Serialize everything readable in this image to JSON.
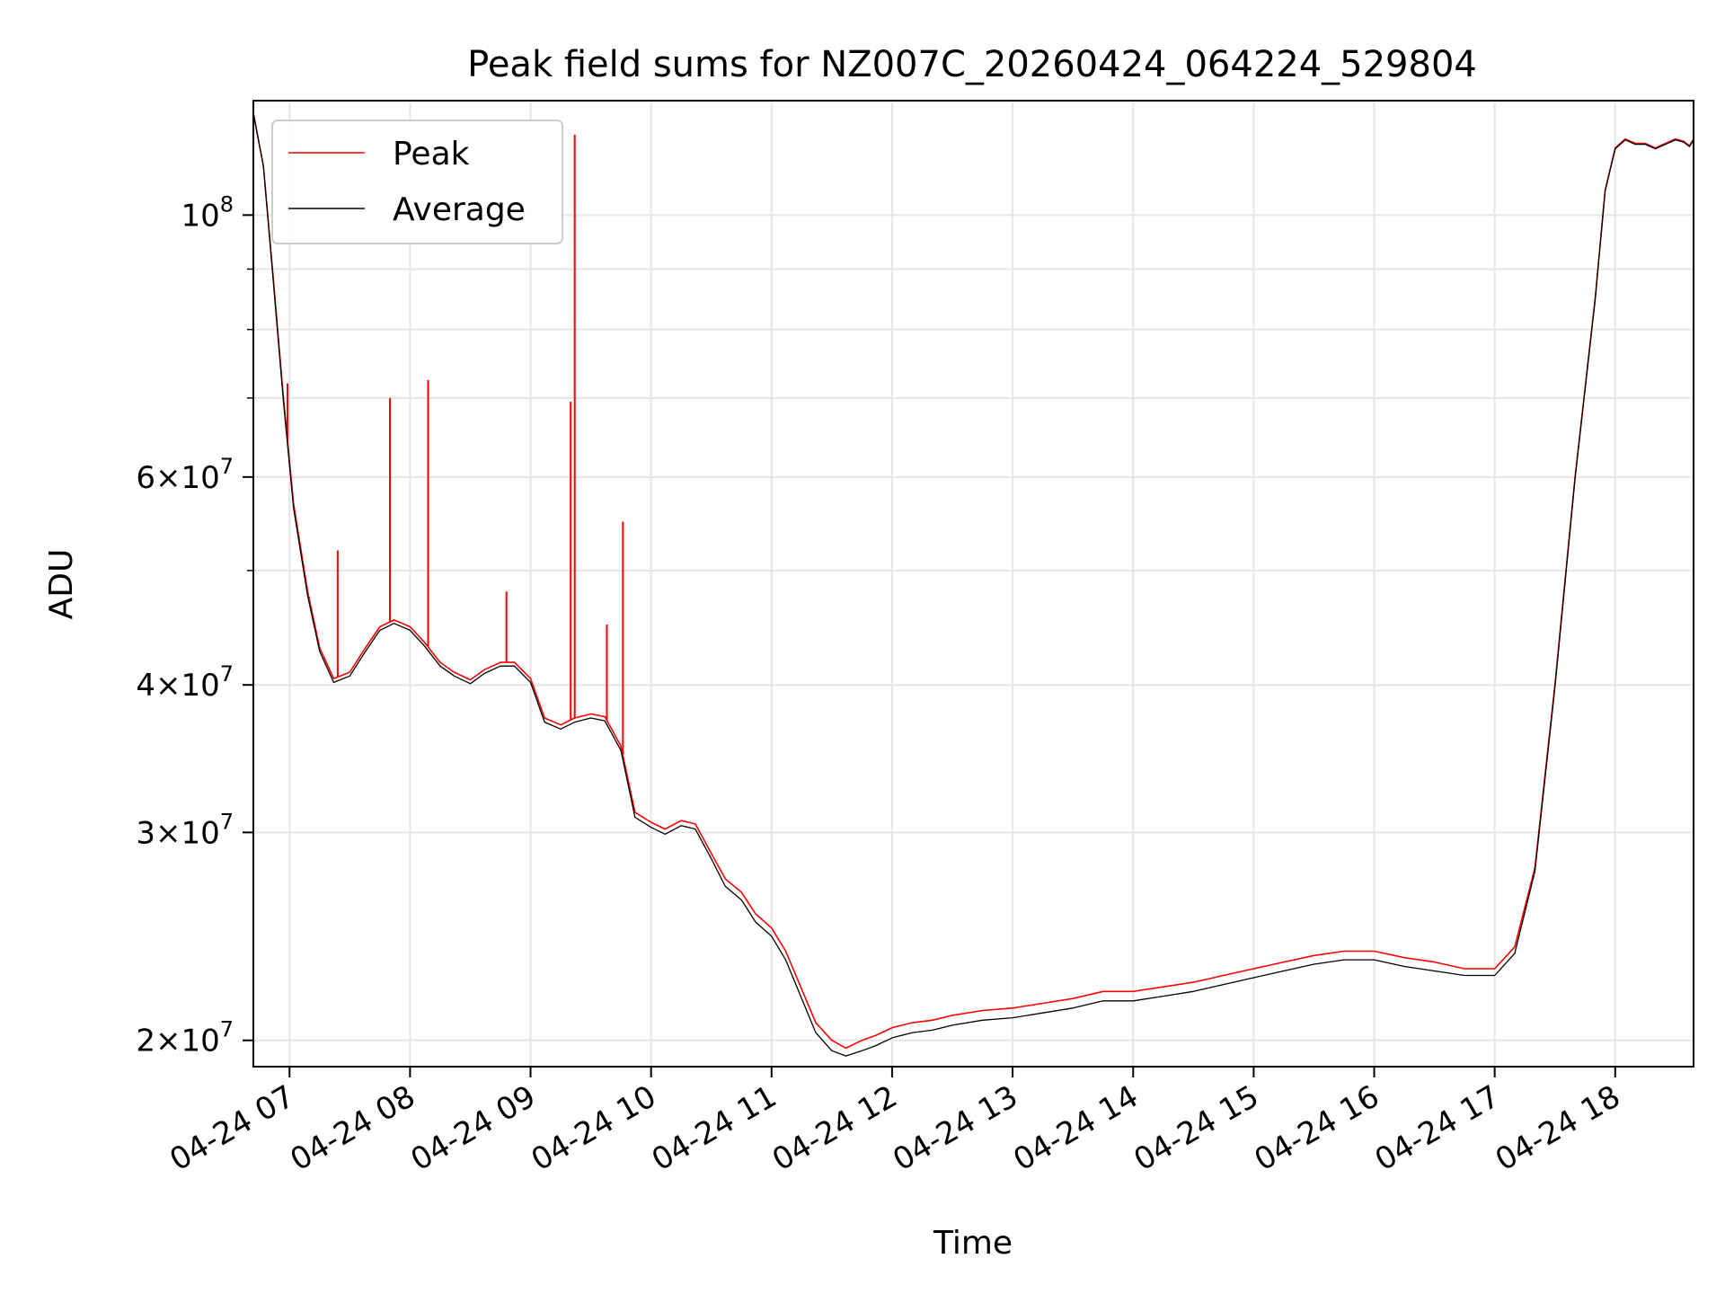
{
  "chart_data": {
    "type": "line",
    "title": "Peak field sums for NZ007C_20260424_064224_529804",
    "xlabel": "Time",
    "ylabel": "ADU",
    "yscale": "log",
    "xlim": [
      "2026-04-24 06:42",
      "2026-04-24 18:39"
    ],
    "ylim": [
      19000000,
      125000000
    ],
    "grid": true,
    "legend_position": "upper-left",
    "x_ticks": [
      "04-24 07",
      "04-24 08",
      "04-24 09",
      "04-24 10",
      "04-24 11",
      "04-24 12",
      "04-24 13",
      "04-24 14",
      "04-24 15",
      "04-24 16",
      "04-24 17",
      "04-24 18"
    ],
    "y_ticks": [
      {
        "value": 20000000,
        "mantissa": "2",
        "exponent": "7"
      },
      {
        "value": 30000000,
        "mantissa": "3",
        "exponent": "7"
      },
      {
        "value": 40000000,
        "mantissa": "4",
        "exponent": "7"
      },
      {
        "value": 60000000,
        "mantissa": "6",
        "exponent": "7"
      },
      {
        "value": 100000000,
        "mantissa": "",
        "exponent": "8"
      }
    ],
    "series": [
      {
        "name": "Peak",
        "color": "#ff0000",
        "x": [
          "2026-04-24 06:42",
          "2026-04-24 06:47",
          "2026-04-24 06:52",
          "2026-04-24 06:57",
          "2026-04-24 07:02",
          "2026-04-24 07:09",
          "2026-04-24 07:15",
          "2026-04-24 07:22",
          "2026-04-24 07:30",
          "2026-04-24 07:37",
          "2026-04-24 07:45",
          "2026-04-24 07:52",
          "2026-04-24 08:00",
          "2026-04-24 08:07",
          "2026-04-24 08:15",
          "2026-04-24 08:22",
          "2026-04-24 08:30",
          "2026-04-24 08:37",
          "2026-04-24 08:45",
          "2026-04-24 08:52",
          "2026-04-24 09:00",
          "2026-04-24 09:07",
          "2026-04-24 09:15",
          "2026-04-24 09:22",
          "2026-04-24 09:30",
          "2026-04-24 09:37",
          "2026-04-24 09:45",
          "2026-04-24 09:52",
          "2026-04-24 10:00",
          "2026-04-24 10:07",
          "2026-04-24 10:15",
          "2026-04-24 10:22",
          "2026-04-24 10:30",
          "2026-04-24 10:37",
          "2026-04-24 10:45",
          "2026-04-24 10:52",
          "2026-04-24 11:00",
          "2026-04-24 11:07",
          "2026-04-24 11:15",
          "2026-04-24 11:22",
          "2026-04-24 11:30",
          "2026-04-24 11:37",
          "2026-04-24 11:45",
          "2026-04-24 11:52",
          "2026-04-24 12:00",
          "2026-04-24 12:10",
          "2026-04-24 12:20",
          "2026-04-24 12:30",
          "2026-04-24 12:45",
          "2026-04-24 13:00",
          "2026-04-24 13:15",
          "2026-04-24 13:30",
          "2026-04-24 13:45",
          "2026-04-24 14:00",
          "2026-04-24 14:15",
          "2026-04-24 14:30",
          "2026-04-24 14:45",
          "2026-04-24 15:00",
          "2026-04-24 15:15",
          "2026-04-24 15:30",
          "2026-04-24 15:45",
          "2026-04-24 16:00",
          "2026-04-24 16:15",
          "2026-04-24 16:30",
          "2026-04-24 16:45",
          "2026-04-24 17:00",
          "2026-04-24 17:10",
          "2026-04-24 17:20",
          "2026-04-24 17:30",
          "2026-04-24 17:40",
          "2026-04-24 17:50",
          "2026-04-24 17:55",
          "2026-04-24 18:00",
          "2026-04-24 18:05",
          "2026-04-24 18:10",
          "2026-04-24 18:15",
          "2026-04-24 18:20",
          "2026-04-24 18:25",
          "2026-04-24 18:30",
          "2026-04-24 18:34",
          "2026-04-24 18:37",
          "2026-04-24 18:39"
        ],
        "values": [
          122000000,
          110000000,
          88000000,
          70000000,
          57000000,
          48000000,
          43000000,
          40500000,
          41000000,
          42800000,
          44800000,
          45400000,
          44800000,
          43500000,
          41800000,
          41000000,
          40400000,
          41200000,
          41800000,
          41800000,
          40500000,
          37500000,
          37000000,
          37500000,
          37800000,
          37600000,
          35500000,
          31200000,
          30600000,
          30200000,
          30700000,
          30500000,
          28800000,
          27400000,
          26700000,
          25600000,
          24900000,
          23800000,
          22100000,
          20700000,
          20000000,
          19700000,
          20000000,
          20200000,
          20500000,
          20700000,
          20800000,
          21000000,
          21200000,
          21300000,
          21500000,
          21700000,
          22000000,
          22000000,
          22200000,
          22400000,
          22700000,
          23000000,
          23300000,
          23600000,
          23800000,
          23800000,
          23500000,
          23300000,
          23000000,
          23000000,
          24000000,
          28000000,
          40000000,
          60000000,
          85000000,
          105000000,
          114000000,
          116000000,
          115000000,
          115000000,
          114000000,
          115000000,
          116000000,
          115500000,
          114500000,
          116000000
        ]
      },
      {
        "name": "Average",
        "color": "#000000",
        "x": [
          "2026-04-24 06:42",
          "2026-04-24 06:47",
          "2026-04-24 06:52",
          "2026-04-24 06:57",
          "2026-04-24 07:02",
          "2026-04-24 07:09",
          "2026-04-24 07:15",
          "2026-04-24 07:22",
          "2026-04-24 07:30",
          "2026-04-24 07:37",
          "2026-04-24 07:45",
          "2026-04-24 07:52",
          "2026-04-24 08:00",
          "2026-04-24 08:07",
          "2026-04-24 08:15",
          "2026-04-24 08:22",
          "2026-04-24 08:30",
          "2026-04-24 08:37",
          "2026-04-24 08:45",
          "2026-04-24 08:52",
          "2026-04-24 09:00",
          "2026-04-24 09:07",
          "2026-04-24 09:15",
          "2026-04-24 09:22",
          "2026-04-24 09:30",
          "2026-04-24 09:37",
          "2026-04-24 09:45",
          "2026-04-24 09:52",
          "2026-04-24 10:00",
          "2026-04-24 10:07",
          "2026-04-24 10:15",
          "2026-04-24 10:22",
          "2026-04-24 10:30",
          "2026-04-24 10:37",
          "2026-04-24 10:45",
          "2026-04-24 10:52",
          "2026-04-24 11:00",
          "2026-04-24 11:07",
          "2026-04-24 11:15",
          "2026-04-24 11:22",
          "2026-04-24 11:30",
          "2026-04-24 11:37",
          "2026-04-24 11:45",
          "2026-04-24 11:52",
          "2026-04-24 12:00",
          "2026-04-24 12:10",
          "2026-04-24 12:20",
          "2026-04-24 12:30",
          "2026-04-24 12:45",
          "2026-04-24 13:00",
          "2026-04-24 13:15",
          "2026-04-24 13:30",
          "2026-04-24 13:45",
          "2026-04-24 14:00",
          "2026-04-24 14:15",
          "2026-04-24 14:30",
          "2026-04-24 14:45",
          "2026-04-24 15:00",
          "2026-04-24 15:15",
          "2026-04-24 15:30",
          "2026-04-24 15:45",
          "2026-04-24 16:00",
          "2026-04-24 16:15",
          "2026-04-24 16:30",
          "2026-04-24 16:45",
          "2026-04-24 17:00",
          "2026-04-24 17:10",
          "2026-04-24 17:20",
          "2026-04-24 17:30",
          "2026-04-24 17:40",
          "2026-04-24 17:50",
          "2026-04-24 17:55",
          "2026-04-24 18:00",
          "2026-04-24 18:05",
          "2026-04-24 18:10",
          "2026-04-24 18:15",
          "2026-04-24 18:20",
          "2026-04-24 18:25",
          "2026-04-24 18:30",
          "2026-04-24 18:34",
          "2026-04-24 18:37",
          "2026-04-24 18:39"
        ],
        "values": [
          122000000,
          110000000,
          87500000,
          69500000,
          56500000,
          47600000,
          42700000,
          40200000,
          40700000,
          42500000,
          44500000,
          45100000,
          44500000,
          43200000,
          41500000,
          40700000,
          40100000,
          40900000,
          41500000,
          41500000,
          40200000,
          37200000,
          36700000,
          37200000,
          37500000,
          37300000,
          35200000,
          30900000,
          30300000,
          29900000,
          30400000,
          30200000,
          28500000,
          27000000,
          26300000,
          25200000,
          24500000,
          23400000,
          21700000,
          20300000,
          19600000,
          19400000,
          19600000,
          19800000,
          20100000,
          20300000,
          20400000,
          20600000,
          20800000,
          20900000,
          21100000,
          21300000,
          21600000,
          21600000,
          21800000,
          22000000,
          22300000,
          22600000,
          22900000,
          23200000,
          23400000,
          23400000,
          23100000,
          22900000,
          22700000,
          22700000,
          23700000,
          27800000,
          39800000,
          59800000,
          84800000,
          104800000,
          113800000,
          115800000,
          114800000,
          114800000,
          113800000,
          114800000,
          115800000,
          115300000,
          114300000,
          115800000
        ]
      }
    ],
    "spikes": {
      "name": "Peak",
      "x": [
        "2026-04-24 06:59",
        "2026-04-24 07:24",
        "2026-04-24 07:50",
        "2026-04-24 08:09",
        "2026-04-24 08:48",
        "2026-04-24 09:20",
        "2026-04-24 09:22",
        "2026-04-24 09:38",
        "2026-04-24 09:46"
      ],
      "values": [
        72000000,
        52000000,
        70000000,
        72500000,
        48000000,
        69500000,
        117000000,
        45000000,
        55000000
      ]
    }
  }
}
